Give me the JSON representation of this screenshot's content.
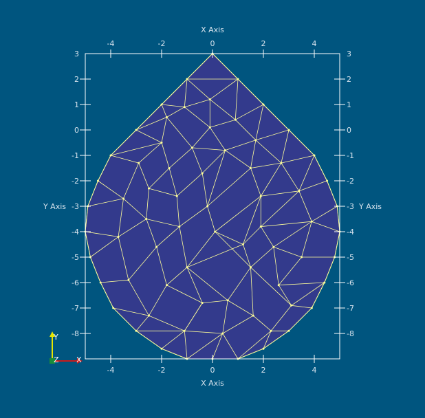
{
  "axes": {
    "x_title": "X Axis",
    "y_title": "Y Axis",
    "xlim": [
      -5,
      5
    ],
    "ylim": [
      -9,
      3
    ],
    "x_ticks": [
      -4,
      -2,
      0,
      2,
      4
    ],
    "y_ticks": [
      2,
      1,
      0,
      -1,
      -2,
      -3,
      -4,
      -5,
      -6,
      -7,
      -8
    ],
    "y_box_top_label": 3
  },
  "orientation": {
    "x_label": "X",
    "y_label": "Y",
    "z_label": "Z"
  },
  "colors": {
    "background": "#00557f",
    "mesh_fill": "#333a8c",
    "mesh_edge": "#ffff99",
    "axes_line": "#ffffff",
    "axes_text": "#d8e4ee",
    "x_axis": "#cc1a1a",
    "y_axis": "#e6e600",
    "z_axis": "#1a8c3a"
  },
  "chart_data": {
    "type": "mesh",
    "outline": [
      [
        0,
        3
      ],
      [
        1,
        2
      ],
      [
        2,
        1
      ],
      [
        3,
        0
      ],
      [
        4,
        -1
      ],
      [
        4.5,
        -2
      ],
      [
        4.9,
        -3
      ],
      [
        5,
        -4
      ],
      [
        4.8,
        -5
      ],
      [
        4.4,
        -6
      ],
      [
        3.9,
        -7
      ],
      [
        3,
        -7.9
      ],
      [
        2,
        -8.6
      ],
      [
        1,
        -9
      ],
      [
        0,
        -9
      ],
      [
        -1,
        -9
      ],
      [
        -2,
        -8.6
      ],
      [
        -3,
        -7.9
      ],
      [
        -3.9,
        -7
      ],
      [
        -4.4,
        -6
      ],
      [
        -4.8,
        -5
      ],
      [
        -5,
        -4
      ],
      [
        -4.9,
        -3
      ],
      [
        -4.5,
        -2
      ],
      [
        -4,
        -1
      ],
      [
        -3,
        0
      ],
      [
        -2,
        1
      ],
      [
        -1,
        2
      ]
    ],
    "vertices": [
      [
        0,
        3
      ],
      [
        1,
        2
      ],
      [
        2,
        1
      ],
      [
        3,
        0
      ],
      [
        4,
        -1
      ],
      [
        4.5,
        -2
      ],
      [
        4.9,
        -3
      ],
      [
        5,
        -4
      ],
      [
        4.8,
        -5
      ],
      [
        4.4,
        -6
      ],
      [
        3.9,
        -7
      ],
      [
        3,
        -7.9
      ],
      [
        2,
        -8.6
      ],
      [
        1,
        -9
      ],
      [
        0,
        -9
      ],
      [
        -1,
        -9
      ],
      [
        -2,
        -8.6
      ],
      [
        -3,
        -7.9
      ],
      [
        -3.9,
        -7
      ],
      [
        -4.4,
        -6
      ],
      [
        -4.8,
        -5
      ],
      [
        -5,
        -4
      ],
      [
        -4.9,
        -3
      ],
      [
        -4.5,
        -2
      ],
      [
        -4,
        -1
      ],
      [
        -3,
        0
      ],
      [
        -2,
        1
      ],
      [
        -1,
        2
      ],
      [
        -0.1,
        1.2
      ],
      [
        -1.1,
        0.9
      ],
      [
        0.9,
        0.4
      ],
      [
        -1.8,
        0.5
      ],
      [
        -0.1,
        0.1
      ],
      [
        1.7,
        -0.4
      ],
      [
        -2,
        -0.5
      ],
      [
        -0.8,
        -0.7
      ],
      [
        0.5,
        -0.8
      ],
      [
        2.7,
        -1.3
      ],
      [
        -2.9,
        -1.3
      ],
      [
        -1.7,
        -1.5
      ],
      [
        -0.4,
        -1.7
      ],
      [
        1.5,
        -1.5
      ],
      [
        3.4,
        -2.4
      ],
      [
        -3.5,
        -2.7
      ],
      [
        -2.5,
        -2.3
      ],
      [
        -1.4,
        -2.6
      ],
      [
        -0.2,
        -3
      ],
      [
        1.9,
        -2.6
      ],
      [
        -2.6,
        -3.5
      ],
      [
        -1.3,
        -3.8
      ],
      [
        0.1,
        -4
      ],
      [
        1.9,
        -3.8
      ],
      [
        3.9,
        -3.6
      ],
      [
        -3.7,
        -4.2
      ],
      [
        -2.2,
        -4.6
      ],
      [
        -1,
        -5.4
      ],
      [
        1.2,
        -4.5
      ],
      [
        2.4,
        -4.6
      ],
      [
        3.5,
        -5
      ],
      [
        -3.3,
        -5.9
      ],
      [
        -1.8,
        -6.1
      ],
      [
        -0.4,
        -6.8
      ],
      [
        1.5,
        -5.4
      ],
      [
        2.6,
        -6.1
      ],
      [
        0.6,
        -6.7
      ],
      [
        -2.5,
        -7.3
      ],
      [
        -1.1,
        -7.9
      ],
      [
        3.1,
        -6.9
      ],
      [
        1.6,
        -7.3
      ],
      [
        0.4,
        -8
      ],
      [
        2.3,
        -7.9
      ]
    ],
    "edge_pairs": [
      [
        0,
        27
      ],
      [
        0,
        1
      ],
      [
        1,
        2
      ],
      [
        2,
        3
      ],
      [
        3,
        4
      ],
      [
        4,
        5
      ],
      [
        5,
        6
      ],
      [
        6,
        7
      ],
      [
        7,
        8
      ],
      [
        8,
        9
      ],
      [
        9,
        10
      ],
      [
        10,
        11
      ],
      [
        11,
        12
      ],
      [
        12,
        13
      ],
      [
        13,
        14
      ],
      [
        14,
        15
      ],
      [
        15,
        16
      ],
      [
        16,
        17
      ],
      [
        17,
        18
      ],
      [
        18,
        19
      ],
      [
        19,
        20
      ],
      [
        20,
        21
      ],
      [
        21,
        22
      ],
      [
        22,
        23
      ],
      [
        23,
        24
      ],
      [
        24,
        25
      ],
      [
        25,
        26
      ],
      [
        26,
        27
      ],
      [
        27,
        1
      ],
      [
        27,
        28
      ],
      [
        1,
        28
      ],
      [
        28,
        29
      ],
      [
        27,
        29
      ],
      [
        28,
        30
      ],
      [
        1,
        30
      ],
      [
        2,
        30
      ],
      [
        29,
        31
      ],
      [
        26,
        29
      ],
      [
        26,
        31
      ],
      [
        25,
        31
      ],
      [
        28,
        32
      ],
      [
        29,
        32
      ],
      [
        30,
        32
      ],
      [
        30,
        33
      ],
      [
        2,
        33
      ],
      [
        3,
        33
      ],
      [
        31,
        34
      ],
      [
        25,
        34
      ],
      [
        24,
        34
      ],
      [
        31,
        35
      ],
      [
        32,
        35
      ],
      [
        32,
        36
      ],
      [
        33,
        36
      ],
      [
        35,
        36
      ],
      [
        33,
        37
      ],
      [
        3,
        37
      ],
      [
        4,
        37
      ],
      [
        24,
        38
      ],
      [
        34,
        38
      ],
      [
        34,
        39
      ],
      [
        35,
        39
      ],
      [
        35,
        40
      ],
      [
        36,
        40
      ],
      [
        36,
        41
      ],
      [
        33,
        41
      ],
      [
        37,
        41
      ],
      [
        37,
        42
      ],
      [
        5,
        42
      ],
      [
        4,
        42
      ],
      [
        23,
        43
      ],
      [
        38,
        43
      ],
      [
        38,
        44
      ],
      [
        39,
        44
      ],
      [
        39,
        45
      ],
      [
        40,
        45
      ],
      [
        40,
        46
      ],
      [
        41,
        46
      ],
      [
        41,
        47
      ],
      [
        37,
        47
      ],
      [
        42,
        47
      ],
      [
        22,
        43
      ],
      [
        43,
        48
      ],
      [
        44,
        48
      ],
      [
        44,
        45
      ],
      [
        45,
        49
      ],
      [
        46,
        49
      ],
      [
        46,
        50
      ],
      [
        47,
        50
      ],
      [
        47,
        51
      ],
      [
        42,
        52
      ],
      [
        6,
        52
      ],
      [
        7,
        52
      ],
      [
        51,
        52
      ],
      [
        21,
        53
      ],
      [
        43,
        53
      ],
      [
        48,
        53
      ],
      [
        48,
        54
      ],
      [
        49,
        54
      ],
      [
        49,
        55
      ],
      [
        50,
        55
      ],
      [
        50,
        56
      ],
      [
        51,
        56
      ],
      [
        51,
        57
      ],
      [
        52,
        57
      ],
      [
        52,
        58
      ],
      [
        8,
        58
      ],
      [
        57,
        58
      ],
      [
        20,
        53
      ],
      [
        53,
        59
      ],
      [
        54,
        59
      ],
      [
        54,
        60
      ],
      [
        55,
        60
      ],
      [
        55,
        61
      ],
      [
        56,
        62
      ],
      [
        57,
        62
      ],
      [
        57,
        63
      ],
      [
        58,
        63
      ],
      [
        9,
        63
      ],
      [
        62,
        64
      ],
      [
        55,
        64
      ],
      [
        56,
        55
      ],
      [
        61,
        64
      ],
      [
        19,
        59
      ],
      [
        59,
        65
      ],
      [
        60,
        65
      ],
      [
        60,
        61
      ],
      [
        61,
        66
      ],
      [
        65,
        66
      ],
      [
        63,
        67
      ],
      [
        9,
        67
      ],
      [
        10,
        67
      ],
      [
        62,
        67
      ],
      [
        62,
        68
      ],
      [
        64,
        68
      ],
      [
        66,
        69
      ],
      [
        64,
        69
      ],
      [
        68,
        69
      ],
      [
        68,
        70
      ],
      [
        67,
        70
      ],
      [
        11,
        70
      ],
      [
        18,
        65
      ],
      [
        17,
        65
      ],
      [
        17,
        66
      ],
      [
        16,
        66
      ],
      [
        15,
        66
      ],
      [
        15,
        69
      ],
      [
        14,
        69
      ],
      [
        13,
        69
      ],
      [
        13,
        70
      ],
      [
        12,
        70
      ],
      [
        66,
        61
      ],
      [
        50,
        62
      ],
      [
        48,
        49
      ],
      [
        56,
        47
      ],
      [
        46,
        36
      ],
      [
        51,
        42
      ]
    ]
  }
}
